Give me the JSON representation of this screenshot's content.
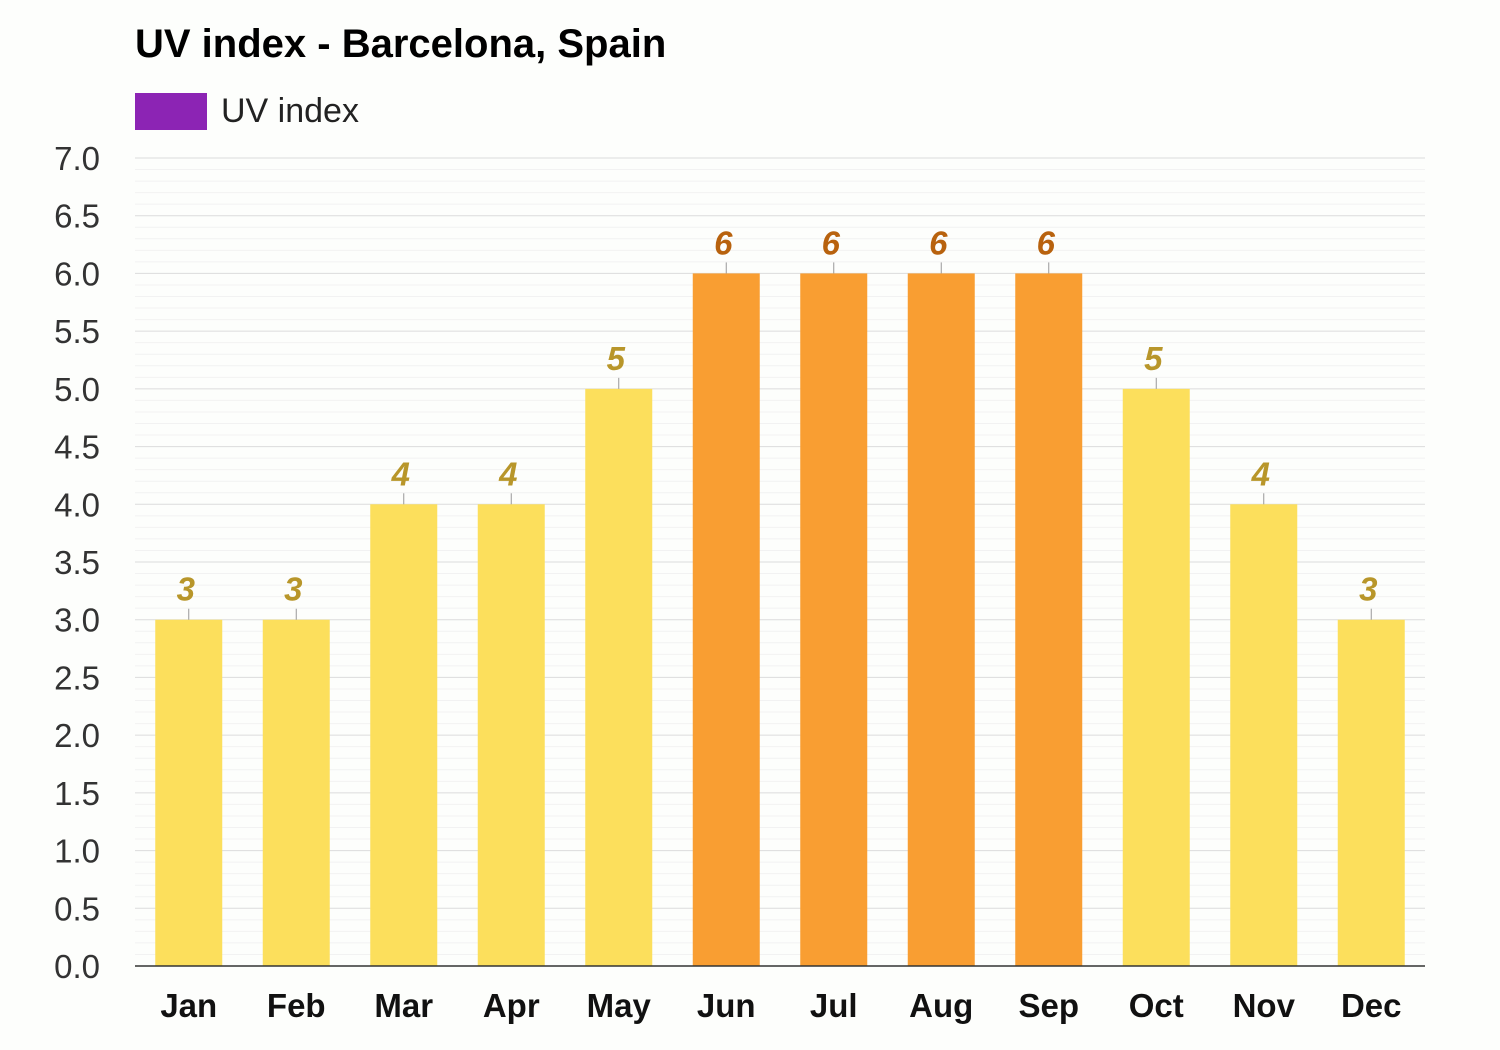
{
  "title": "UV index - Barcelona, Spain",
  "legend": {
    "label": "UV index",
    "color": "#8c24b4"
  },
  "chart_data": {
    "type": "bar",
    "title": "UV index - Barcelona, Spain",
    "xlabel": "",
    "ylabel": "",
    "categories": [
      "Jan",
      "Feb",
      "Mar",
      "Apr",
      "May",
      "Jun",
      "Jul",
      "Aug",
      "Sep",
      "Oct",
      "Nov",
      "Dec"
    ],
    "series": [
      {
        "name": "UV index",
        "values": [
          3,
          3,
          4,
          4,
          5,
          6,
          6,
          6,
          6,
          5,
          4,
          3
        ]
      }
    ],
    "data_labels": [
      "3",
      "3",
      "4",
      "4",
      "5",
      "6",
      "6",
      "6",
      "6",
      "5",
      "4",
      "3"
    ],
    "ylim": [
      0,
      7
    ],
    "yticks": [
      "0.0",
      "0.5",
      "1.0",
      "1.5",
      "2.0",
      "2.5",
      "3.0",
      "3.5",
      "4.0",
      "4.5",
      "5.0",
      "5.5",
      "6.0",
      "6.5",
      "7.0"
    ],
    "grid": true,
    "legend_position": "top-left",
    "colors": {
      "moderate": "#fcdf5c",
      "high": "#f99e32",
      "moderate_label": "#b8962a",
      "high_label": "#b8620e"
    }
  }
}
